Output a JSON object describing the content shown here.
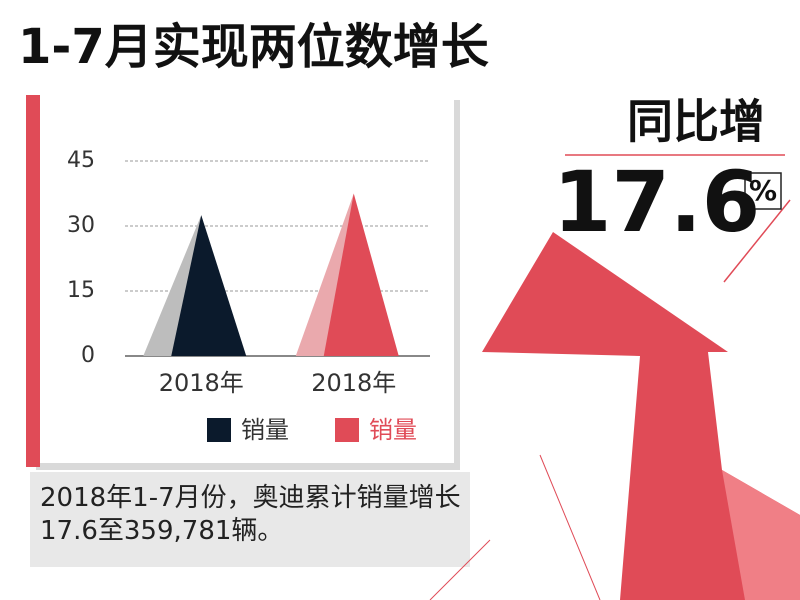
{
  "title": "1-7月实现两位数增长",
  "growth_label": "同比增",
  "growth_value": "17.6",
  "growth_unit": "%",
  "caption": "2018年1-7月份，奥迪累计销量增长17.6至359,781辆。",
  "chart_data": {
    "type": "bar",
    "categories": [
      "2018年",
      "2018年"
    ],
    "series": [
      {
        "name": "销量",
        "color": "#0b1a2c",
        "values": [
          32.5,
          null
        ]
      },
      {
        "name": "销量",
        "color": "#e04b57",
        "values": [
          null,
          37.5
        ]
      }
    ],
    "ylim": [
      0,
      45
    ],
    "yticks": [
      0,
      15,
      30,
      45
    ],
    "grid": true
  }
}
